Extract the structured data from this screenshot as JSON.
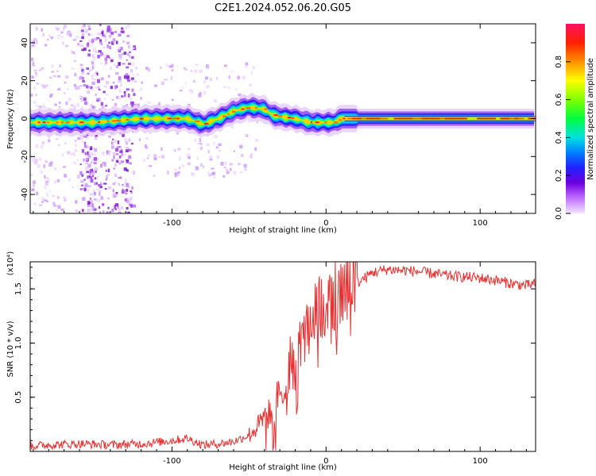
{
  "title": "C2E1.2024.052.06.20.G05",
  "chart_data": [
    {
      "type": "heatmap",
      "xlabel": "Height of straight line (km)",
      "ylabel": "Frequency (Hz)",
      "xlim": [
        -192,
        136
      ],
      "ylim": [
        -50,
        50
      ],
      "xticks": [
        -100,
        0,
        100
      ],
      "yticks": [
        -40,
        -20,
        0,
        20,
        40
      ],
      "colorbar": {
        "label": "Normalized spectral amplitude",
        "range": [
          0,
          1
        ],
        "ticks": [
          0.0,
          0.2,
          0.4,
          0.6,
          0.8
        ]
      },
      "ridge": {
        "x": [
          -192,
          -150,
          -120,
          -90,
          -80,
          -70,
          -60,
          -50,
          -40,
          -35,
          -30,
          -20,
          -10,
          0,
          5,
          10,
          20,
          60,
          100,
          136
        ],
        "y": [
          -2,
          -2,
          0,
          0,
          -3,
          0,
          4,
          6,
          5,
          2,
          1,
          0,
          -2,
          -2,
          -2,
          0,
          0,
          0,
          0,
          0
        ]
      },
      "noise_band_x": [
        -160,
        -125
      ],
      "grid": false
    },
    {
      "type": "line",
      "xlabel": "Height of straight line (km)",
      "ylabel": "SNR (10 * v/v)",
      "yscale_label": "(x10⁴)",
      "xlim": [
        -192,
        136
      ],
      "ylim": [
        0,
        1.75
      ],
      "xticks": [
        -100,
        0,
        100
      ],
      "yticks": [
        0.5,
        1.0,
        1.5
      ],
      "series": [
        {
          "color": "#e83030",
          "x": [
            -192,
            -180,
            -160,
            -140,
            -120,
            -100,
            -90,
            -80,
            -70,
            -60,
            -50,
            -45,
            -40,
            -35,
            -30,
            -25,
            -20,
            -15,
            -10,
            -5,
            0,
            5,
            10,
            15,
            20,
            30,
            40,
            50,
            60,
            70,
            80,
            90,
            100,
            110,
            120,
            130,
            136
          ],
          "y": [
            0.05,
            0.06,
            0.07,
            0.06,
            0.07,
            0.1,
            0.12,
            0.06,
            0.07,
            0.09,
            0.15,
            0.22,
            0.3,
            0.38,
            0.55,
            0.72,
            0.9,
            1.05,
            1.15,
            1.25,
            1.3,
            1.35,
            1.4,
            1.45,
            1.55,
            1.65,
            1.68,
            1.67,
            1.66,
            1.64,
            1.62,
            1.61,
            1.6,
            1.58,
            1.55,
            1.53,
            1.55
          ]
        }
      ],
      "grid": false
    }
  ]
}
